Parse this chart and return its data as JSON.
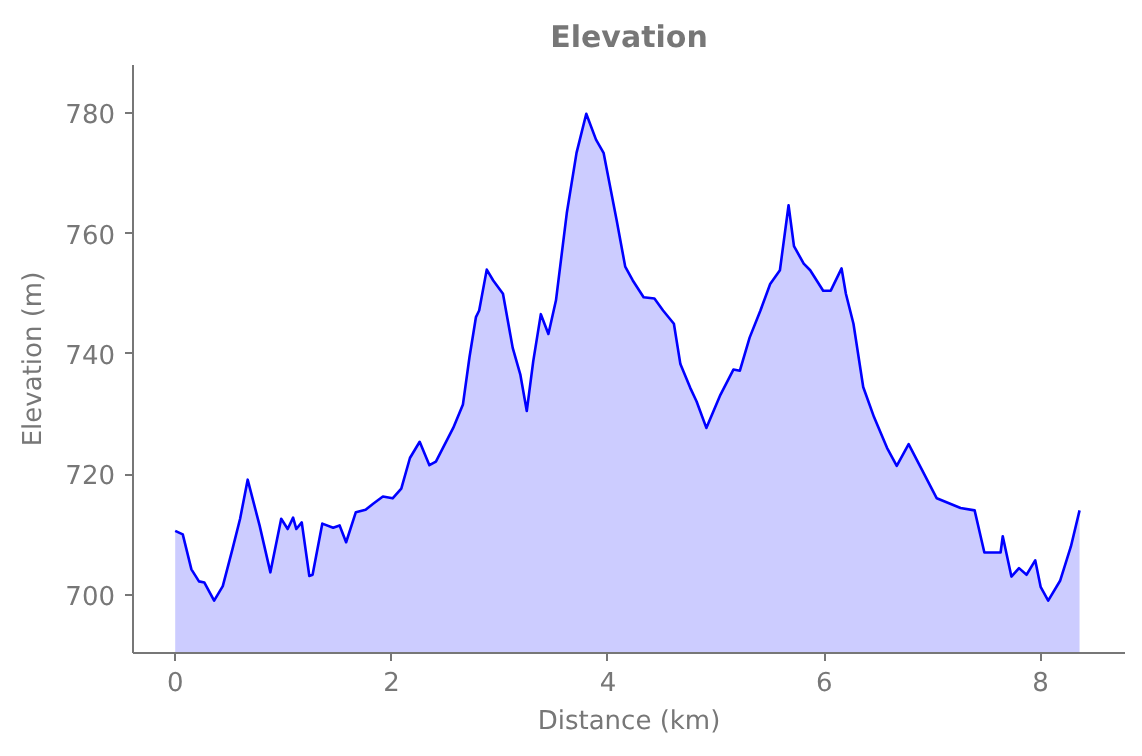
{
  "chart_data": {
    "type": "area",
    "title": "Elevation",
    "xlabel": "Distance (km)",
    "ylabel": "Elevation (m)",
    "xlim": [
      -0.39,
      8.78
    ],
    "ylim": [
      690.3,
      788
    ],
    "xticks": [
      0,
      2,
      4,
      6,
      8
    ],
    "yticks": [
      700,
      720,
      740,
      760,
      780
    ],
    "grid": false,
    "series": [
      {
        "color": "#0000ff",
        "x": [
          0,
          0.07,
          0.15,
          0.22,
          0.27,
          0.36,
          0.44,
          0.53,
          0.6,
          0.67,
          0.78,
          0.88,
          0.98,
          1.04,
          1.09,
          1.12,
          1.17,
          1.24,
          1.27,
          1.36,
          1.46,
          1.52,
          1.58,
          1.67,
          1.76,
          1.83,
          1.92,
          2.01,
          2.09,
          2.17,
          2.26,
          2.35,
          2.41,
          2.57,
          2.66,
          2.72,
          2.78,
          2.81,
          2.88,
          2.94,
          3.03,
          3.12,
          3.19,
          3.25,
          3.31,
          3.38,
          3.45,
          3.52,
          3.62,
          3.71,
          3.8,
          3.89,
          3.96,
          4.08,
          4.16,
          4.23,
          4.33,
          4.43,
          4.51,
          4.61,
          4.67,
          4.76,
          4.82,
          4.91,
          5.04,
          5.16,
          5.22,
          5.31,
          5.41,
          5.5,
          5.59,
          5.67,
          5.72,
          5.81,
          5.87,
          5.99,
          6.06,
          6.16,
          6.2,
          6.27,
          6.36,
          6.46,
          6.58,
          6.67,
          6.78,
          7.04,
          7.26,
          7.39,
          7.48,
          7.63,
          7.65,
          7.73,
          7.8,
          7.87,
          7.95,
          8.0,
          8.07,
          8.18,
          8.28,
          8.36
        ],
        "values": [
          710.6,
          710,
          704.2,
          702.2,
          702,
          699,
          701.4,
          707.6,
          712.6,
          719.1,
          711.5,
          703.7,
          712.6,
          710.9,
          712.8,
          710.9,
          712,
          703.1,
          703.3,
          711.8,
          711.1,
          711.5,
          708.7,
          713.7,
          714.1,
          715.1,
          716.3,
          716,
          717.6,
          722.7,
          725.4,
          721.5,
          722.1,
          727.7,
          731.6,
          739.4,
          746.1,
          747.2,
          754,
          752.2,
          750,
          741,
          736.6,
          730.5,
          738.8,
          746.6,
          743.3,
          748.9,
          763.4,
          773.4,
          779.9,
          775.6,
          773.4,
          762.3,
          754.5,
          752.2,
          749.4,
          749.2,
          747.2,
          745,
          738.3,
          734.4,
          732.1,
          727.7,
          733.2,
          737.4,
          737.2,
          742.7,
          747.2,
          751.6,
          753.9,
          764.7,
          757.9,
          755,
          753.9,
          750.5,
          750.5,
          754.2,
          750,
          745,
          734.5,
          729.5,
          724.4,
          721.4,
          725,
          716,
          714.4,
          714,
          707,
          707,
          709.7,
          703,
          704.4,
          703.3,
          705.7,
          701.3,
          699,
          702.3,
          708,
          714
        ]
      }
    ]
  }
}
